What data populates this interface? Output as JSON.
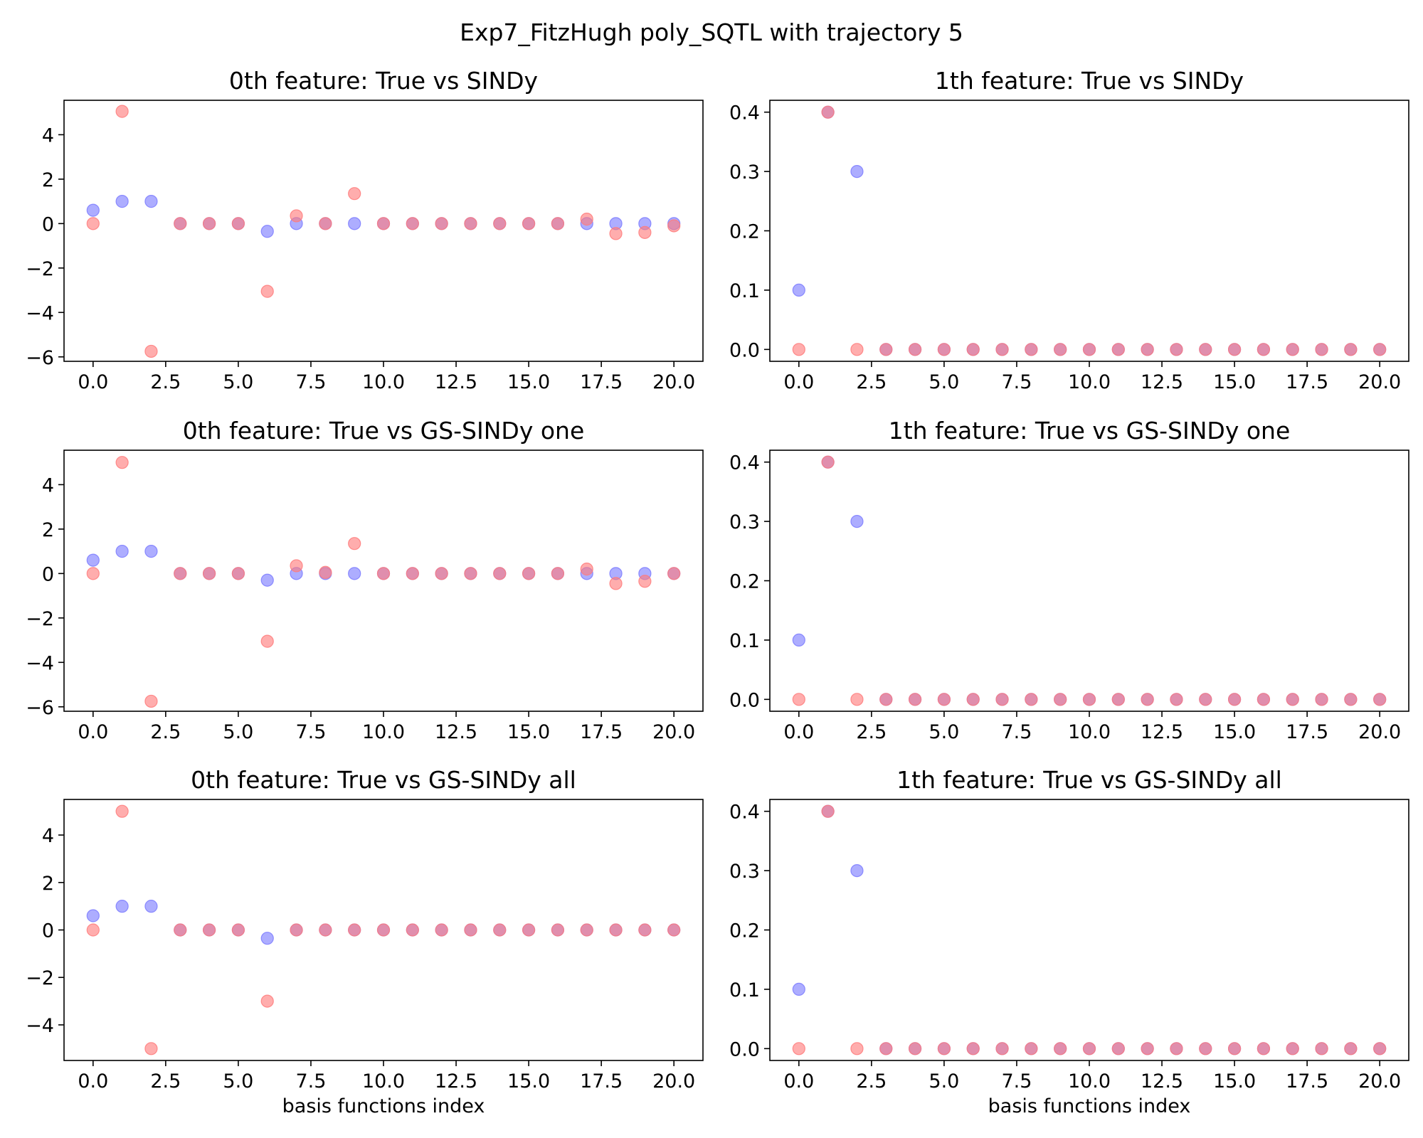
{
  "figure": {
    "suptitle": "Exp7_FitzHugh poly_SQTL with trajectory 5",
    "colors": {
      "true": "#7b7bff",
      "model": "#ff7b7b"
    }
  },
  "chart_data": [
    {
      "type": "scatter",
      "title": "0th feature: True vs SINDy",
      "xlabel": "",
      "x": [
        0,
        1,
        2,
        3,
        4,
        5,
        6,
        7,
        8,
        9,
        10,
        11,
        12,
        13,
        14,
        15,
        16,
        17,
        18,
        19,
        20
      ],
      "xlim": [
        -1,
        21
      ],
      "xticks": [
        0,
        2.5,
        5,
        7.5,
        10,
        12.5,
        15,
        17.5,
        20
      ],
      "xtick_labels": [
        "0.0",
        "2.5",
        "5.0",
        "7.5",
        "10.0",
        "12.5",
        "15.0",
        "17.5",
        "20.0"
      ],
      "ylim": [
        -6.2,
        5.55
      ],
      "yticks": [
        -6,
        -4,
        -2,
        0,
        2,
        4
      ],
      "ytick_labels": [
        "−6",
        "−4",
        "−2",
        "0",
        "2",
        "4"
      ],
      "series": [
        {
          "color": "#7b7bff",
          "values": [
            0.6,
            1.0,
            1.0,
            0,
            0,
            0,
            -0.35,
            0.0,
            0,
            0.0,
            0,
            0,
            0,
            0,
            0,
            0,
            0,
            0,
            0,
            0,
            0
          ]
        },
        {
          "color": "#ff7b7b",
          "values": [
            0,
            5.05,
            -5.75,
            0,
            0,
            0,
            -3.05,
            0.35,
            0,
            1.35,
            0,
            0,
            0,
            0,
            0,
            0,
            0,
            0.2,
            -0.45,
            -0.4,
            -0.1
          ]
        }
      ]
    },
    {
      "type": "scatter",
      "title": "1th feature: True vs SINDy",
      "xlabel": "",
      "x": [
        0,
        1,
        2,
        3,
        4,
        5,
        6,
        7,
        8,
        9,
        10,
        11,
        12,
        13,
        14,
        15,
        16,
        17,
        18,
        19,
        20
      ],
      "xlim": [
        -1,
        21
      ],
      "xticks": [
        0,
        2.5,
        5,
        7.5,
        10,
        12.5,
        15,
        17.5,
        20
      ],
      "xtick_labels": [
        "0.0",
        "2.5",
        "5.0",
        "7.5",
        "10.0",
        "12.5",
        "15.0",
        "17.5",
        "20.0"
      ],
      "ylim": [
        -0.02,
        0.42
      ],
      "yticks": [
        0,
        0.1,
        0.2,
        0.3,
        0.4
      ],
      "ytick_labels": [
        "0.0",
        "0.1",
        "0.2",
        "0.3",
        "0.4"
      ],
      "series": [
        {
          "color": "#7b7bff",
          "values": [
            0.1,
            0.4,
            0.3,
            0,
            0,
            0,
            0,
            0,
            0,
            0,
            0,
            0,
            0,
            0,
            0,
            0,
            0,
            0,
            0,
            0,
            0
          ]
        },
        {
          "color": "#ff7b7b",
          "values": [
            0,
            0.4,
            0,
            0,
            0,
            0,
            0,
            0,
            0,
            0,
            0,
            0,
            0,
            0,
            0,
            0,
            0,
            0,
            0,
            0,
            0
          ]
        }
      ]
    },
    {
      "type": "scatter",
      "title": "0th feature: True vs GS-SINDy one",
      "xlabel": "",
      "x": [
        0,
        1,
        2,
        3,
        4,
        5,
        6,
        7,
        8,
        9,
        10,
        11,
        12,
        13,
        14,
        15,
        16,
        17,
        18,
        19,
        20
      ],
      "xlim": [
        -1,
        21
      ],
      "xticks": [
        0,
        2.5,
        5,
        7.5,
        10,
        12.5,
        15,
        17.5,
        20
      ],
      "xtick_labels": [
        "0.0",
        "2.5",
        "5.0",
        "7.5",
        "10.0",
        "12.5",
        "15.0",
        "17.5",
        "20.0"
      ],
      "ylim": [
        -6.2,
        5.55
      ],
      "yticks": [
        -6,
        -4,
        -2,
        0,
        2,
        4
      ],
      "ytick_labels": [
        "−6",
        "−4",
        "−2",
        "0",
        "2",
        "4"
      ],
      "series": [
        {
          "color": "#7b7bff",
          "values": [
            0.6,
            1.0,
            1.0,
            0,
            0,
            0,
            -0.3,
            0.0,
            0.0,
            0.0,
            0,
            0,
            0,
            0,
            0,
            0,
            0,
            0,
            0.0,
            0.0,
            0
          ]
        },
        {
          "color": "#ff7b7b",
          "values": [
            0,
            5.0,
            -5.75,
            0,
            0,
            0,
            -3.05,
            0.35,
            0.05,
            1.35,
            0,
            0,
            0,
            0,
            0,
            0,
            0,
            0.2,
            -0.45,
            -0.35,
            0
          ]
        }
      ]
    },
    {
      "type": "scatter",
      "title": "1th feature: True vs GS-SINDy one",
      "xlabel": "",
      "x": [
        0,
        1,
        2,
        3,
        4,
        5,
        6,
        7,
        8,
        9,
        10,
        11,
        12,
        13,
        14,
        15,
        16,
        17,
        18,
        19,
        20
      ],
      "xlim": [
        -1,
        21
      ],
      "xticks": [
        0,
        2.5,
        5,
        7.5,
        10,
        12.5,
        15,
        17.5,
        20
      ],
      "xtick_labels": [
        "0.0",
        "2.5",
        "5.0",
        "7.5",
        "10.0",
        "12.5",
        "15.0",
        "17.5",
        "20.0"
      ],
      "ylim": [
        -0.02,
        0.42
      ],
      "yticks": [
        0,
        0.1,
        0.2,
        0.3,
        0.4
      ],
      "ytick_labels": [
        "0.0",
        "0.1",
        "0.2",
        "0.3",
        "0.4"
      ],
      "series": [
        {
          "color": "#7b7bff",
          "values": [
            0.1,
            0.4,
            0.3,
            0,
            0,
            0,
            0,
            0,
            0,
            0,
            0,
            0,
            0,
            0,
            0,
            0,
            0,
            0,
            0,
            0,
            0
          ]
        },
        {
          "color": "#ff7b7b",
          "values": [
            0,
            0.4,
            0,
            0,
            0,
            0,
            0,
            0,
            0,
            0,
            0,
            0,
            0,
            0,
            0,
            0,
            0,
            0,
            0,
            0,
            0
          ]
        }
      ]
    },
    {
      "type": "scatter",
      "title": "0th feature: True vs GS-SINDy all",
      "xlabel": "basis functions index",
      "x": [
        0,
        1,
        2,
        3,
        4,
        5,
        6,
        7,
        8,
        9,
        10,
        11,
        12,
        13,
        14,
        15,
        16,
        17,
        18,
        19,
        20
      ],
      "xlim": [
        -1,
        21
      ],
      "xticks": [
        0,
        2.5,
        5,
        7.5,
        10,
        12.5,
        15,
        17.5,
        20
      ],
      "xtick_labels": [
        "0.0",
        "2.5",
        "5.0",
        "7.5",
        "10.0",
        "12.5",
        "15.0",
        "17.5",
        "20.0"
      ],
      "ylim": [
        -5.5,
        5.5
      ],
      "yticks": [
        -4,
        -2,
        0,
        2,
        4
      ],
      "ytick_labels": [
        "−4",
        "−2",
        "0",
        "2",
        "4"
      ],
      "series": [
        {
          "color": "#7b7bff",
          "values": [
            0.6,
            1.0,
            1.0,
            0,
            0,
            0,
            -0.35,
            0,
            0,
            0,
            0,
            0,
            0,
            0,
            0,
            0,
            0,
            0,
            0,
            0,
            0
          ]
        },
        {
          "color": "#ff7b7b",
          "values": [
            0,
            5.0,
            -5.0,
            0,
            0,
            0,
            -3.0,
            0,
            0,
            0,
            0,
            0,
            0,
            0,
            0,
            0,
            0,
            0,
            0,
            0,
            0
          ]
        }
      ]
    },
    {
      "type": "scatter",
      "title": "1th feature: True vs GS-SINDy all",
      "xlabel": "basis functions index",
      "x": [
        0,
        1,
        2,
        3,
        4,
        5,
        6,
        7,
        8,
        9,
        10,
        11,
        12,
        13,
        14,
        15,
        16,
        17,
        18,
        19,
        20
      ],
      "xlim": [
        -1,
        21
      ],
      "xticks": [
        0,
        2.5,
        5,
        7.5,
        10,
        12.5,
        15,
        17.5,
        20
      ],
      "xtick_labels": [
        "0.0",
        "2.5",
        "5.0",
        "7.5",
        "10.0",
        "12.5",
        "15.0",
        "17.5",
        "20.0"
      ],
      "ylim": [
        -0.02,
        0.42
      ],
      "yticks": [
        0,
        0.1,
        0.2,
        0.3,
        0.4
      ],
      "ytick_labels": [
        "0.0",
        "0.1",
        "0.2",
        "0.3",
        "0.4"
      ],
      "series": [
        {
          "color": "#7b7bff",
          "values": [
            0.1,
            0.4,
            0.3,
            0,
            0,
            0,
            0,
            0,
            0,
            0,
            0,
            0,
            0,
            0,
            0,
            0,
            0,
            0,
            0,
            0,
            0
          ]
        },
        {
          "color": "#ff7b7b",
          "values": [
            0,
            0.4,
            0,
            0,
            0,
            0,
            0,
            0,
            0,
            0,
            0,
            0,
            0,
            0,
            0,
            0,
            0,
            0,
            0,
            0,
            0
          ]
        }
      ]
    }
  ]
}
